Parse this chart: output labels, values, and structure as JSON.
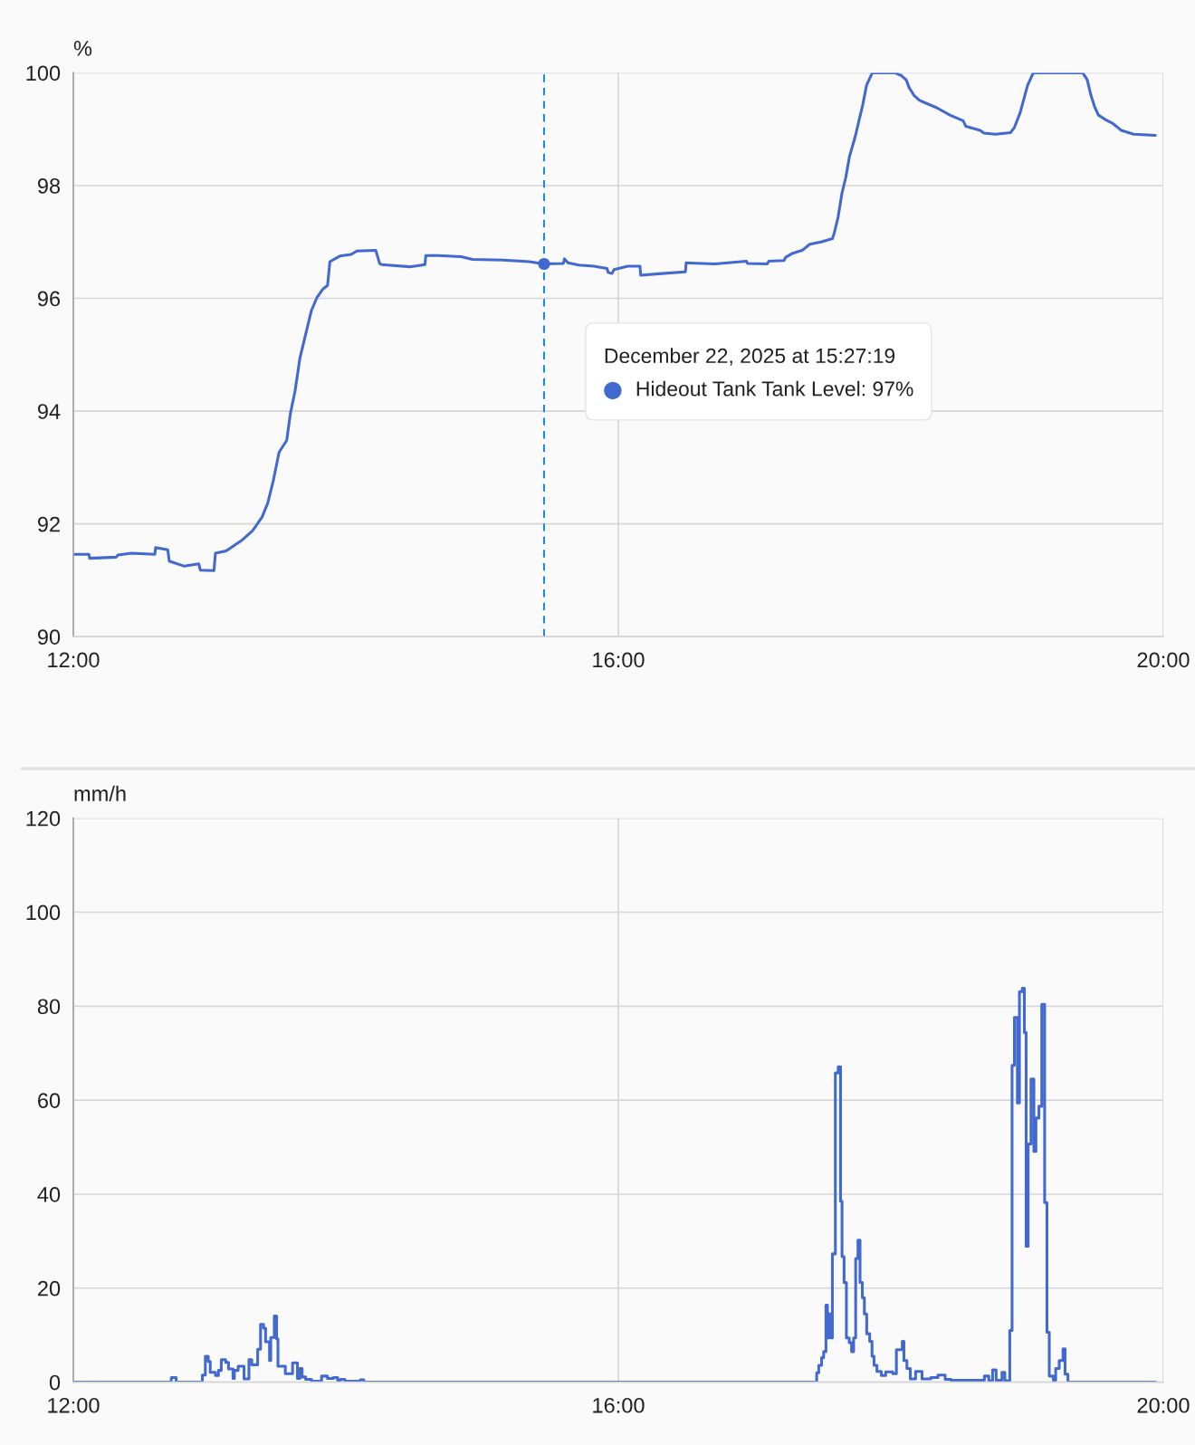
{
  "chart_data": [
    {
      "type": "line",
      "ylabel": "%",
      "x": [
        12.0,
        12.114,
        12.12,
        12.314,
        12.328,
        12.426,
        12.598,
        12.604,
        12.693,
        12.704,
        12.815,
        12.921,
        12.932,
        13.032,
        13.043,
        13.121,
        13.232,
        13.316,
        13.385,
        13.427,
        13.469,
        13.51,
        13.566,
        13.594,
        13.627,
        13.663,
        13.705,
        13.747,
        13.789,
        13.83,
        13.866,
        13.883,
        13.956,
        14.039,
        14.081,
        14.22,
        14.248,
        14.262,
        14.47,
        14.581,
        14.587,
        14.679,
        14.846,
        14.929,
        15.152,
        15.346,
        15.452,
        15.597,
        15.605,
        15.63,
        15.708,
        15.819,
        15.917,
        15.925,
        15.953,
        15.969,
        16.07,
        16.159,
        16.164,
        16.32,
        16.492,
        16.498,
        16.709,
        16.94,
        16.949,
        17.093,
        17.104,
        17.216,
        17.229,
        17.28,
        17.349,
        17.405,
        17.488,
        17.572,
        17.586,
        17.613,
        17.641,
        17.669,
        17.697,
        17.739,
        17.766,
        17.794,
        17.822,
        17.864,
        18.031,
        18.078,
        18.114,
        18.134,
        18.17,
        18.211,
        18.337,
        18.434,
        18.531,
        18.551,
        18.656,
        18.684,
        18.768,
        18.879,
        18.907,
        18.949,
        18.976,
        19.004,
        19.046,
        19.408,
        19.441,
        19.469,
        19.497,
        19.524,
        19.574,
        19.63,
        19.691,
        19.783,
        19.942
      ],
      "series": [
        {
          "color": "#4269d0",
          "values": [
            91.46,
            91.46,
            91.39,
            91.41,
            91.45,
            91.48,
            91.46,
            91.58,
            91.54,
            91.34,
            91.25,
            91.29,
            91.18,
            91.17,
            91.48,
            91.52,
            91.7,
            91.88,
            92.12,
            92.37,
            92.78,
            93.27,
            93.48,
            93.97,
            94.35,
            94.94,
            95.36,
            95.78,
            96.02,
            96.16,
            96.23,
            96.65,
            96.75,
            96.78,
            96.84,
            96.85,
            96.62,
            96.6,
            96.56,
            96.6,
            96.76,
            96.76,
            96.74,
            96.69,
            96.68,
            96.65,
            96.61,
            96.62,
            96.7,
            96.63,
            96.59,
            96.57,
            96.53,
            96.46,
            96.44,
            96.51,
            96.57,
            96.57,
            96.41,
            96.44,
            96.47,
            96.63,
            96.61,
            96.66,
            96.62,
            96.61,
            96.66,
            96.67,
            96.73,
            96.8,
            96.85,
            96.96,
            97.0,
            97.06,
            97.17,
            97.44,
            97.86,
            98.14,
            98.52,
            98.87,
            99.15,
            99.43,
            99.78,
            100.0,
            100.0,
            99.95,
            99.87,
            99.74,
            99.6,
            99.51,
            99.38,
            99.25,
            99.15,
            99.05,
            98.98,
            98.93,
            98.91,
            98.94,
            99.03,
            99.29,
            99.53,
            99.78,
            100.0,
            100.0,
            99.88,
            99.6,
            99.39,
            99.25,
            99.17,
            99.1,
            98.98,
            98.91,
            98.89
          ]
        },
        {
          "type": "scatter",
          "x": [
            15.455
          ],
          "values": [
            96.61
          ],
          "color": "#4269d0",
          "marker": "circle"
        }
      ],
      "xlim": [
        12,
        20
      ],
      "xticks": [
        {
          "value": 12,
          "label": "12:00"
        },
        {
          "value": 16,
          "label": "16:00"
        },
        {
          "value": 20,
          "label": "20:00"
        }
      ],
      "ylim": [
        90,
        100
      ],
      "yticks": [
        90,
        92,
        94,
        96,
        98,
        100
      ],
      "grid": true,
      "ref_lines": [
        {
          "axis": "x",
          "value": 15.455,
          "color": "#1e88e5",
          "line_style": "dashed"
        }
      ],
      "annotations": [
        "December 22, 2025 at 15:27:19",
        "Hideout Tank Tank Level: 97%"
      ]
    },
    {
      "type": "step",
      "ylabel": "mm/h",
      "x": [
        12.0,
        12.719,
        12.755,
        12.947,
        12.969,
        12.99,
        13.005,
        13.043,
        13.065,
        13.086,
        13.118,
        13.139,
        13.172,
        13.182,
        13.21,
        13.253,
        13.289,
        13.31,
        13.353,
        13.374,
        13.396,
        13.411,
        13.44,
        13.449,
        13.475,
        13.492,
        13.502,
        13.556,
        13.609,
        13.645,
        13.662,
        13.679,
        13.705,
        13.748,
        13.822,
        13.865,
        13.908,
        13.94,
        13.961,
        13.993,
        14.106,
        14.132,
        17.456,
        17.471,
        17.492,
        17.507,
        17.524,
        17.535,
        17.546,
        17.563,
        17.571,
        17.593,
        17.614,
        17.631,
        17.642,
        17.657,
        17.674,
        17.695,
        17.712,
        17.727,
        17.742,
        17.759,
        17.774,
        17.791,
        17.806,
        17.823,
        17.845,
        17.862,
        17.877,
        17.898,
        17.93,
        17.962,
        18.015,
        18.041,
        18.084,
        18.096,
        18.118,
        18.143,
        18.182,
        18.229,
        18.293,
        18.346,
        18.399,
        18.442,
        18.687,
        18.719,
        18.747,
        18.773,
        18.816,
        18.837,
        18.873,
        18.89,
        18.907,
        18.929,
        18.944,
        18.965,
        18.98,
        18.993,
        19.008,
        19.029,
        19.05,
        19.065,
        19.087,
        19.108,
        19.129,
        19.146,
        19.163,
        19.193,
        19.21,
        19.236,
        19.264,
        19.279,
        19.3,
        19.942
      ],
      "series": [
        {
          "color": "#4269d0",
          "values": [
            0,
            1.0,
            0,
            1.5,
            5.5,
            4.4,
            2.1,
            1.4,
            2.5,
            4.8,
            4.2,
            2.8,
            0.8,
            2.5,
            3.4,
            0.7,
            4.8,
            3.7,
            7.0,
            12.3,
            11.5,
            8.6,
            4.6,
            9.5,
            14.1,
            9.2,
            3.4,
            1.8,
            4.1,
            0.8,
            2.9,
            1.1,
            0.6,
            0.2,
            1.3,
            0.8,
            1.0,
            0.4,
            0.6,
            0.2,
            0.5,
            0,
            2.0,
            3.6,
            5.2,
            6.5,
            16.4,
            9.4,
            14.5,
            9.4,
            27.3,
            65.8,
            67.1,
            38.5,
            26.7,
            21.2,
            9.4,
            8.4,
            6.5,
            9.4,
            26.3,
            30.2,
            21.2,
            18.0,
            14.5,
            10.3,
            8.7,
            5.5,
            3.6,
            2.3,
            1.4,
            2.2,
            1.8,
            6.9,
            8.7,
            4.6,
            2.9,
            0.7,
            2.3,
            0.7,
            1.0,
            1.5,
            0.6,
            0.4,
            1.3,
            0.3,
            2.6,
            0.4,
            2.1,
            0.3,
            11.0,
            67.4,
            77.6,
            59.4,
            83.1,
            83.8,
            74.4,
            28.9,
            50.7,
            64.5,
            49.1,
            56.2,
            58.7,
            80.4,
            38.2,
            10.6,
            1.3,
            0.4,
            2.9,
            4.6,
            7.1,
            1.7,
            0,
            0
          ]
        }
      ],
      "xlim": [
        12,
        20
      ],
      "xticks": [
        {
          "value": 12,
          "label": "12:00"
        },
        {
          "value": 16,
          "label": "16:00"
        },
        {
          "value": 20,
          "label": "20:00"
        }
      ],
      "ylim": [
        0,
        120
      ],
      "yticks": [
        0,
        20,
        40,
        60,
        80,
        100,
        120
      ],
      "grid": true
    }
  ]
}
